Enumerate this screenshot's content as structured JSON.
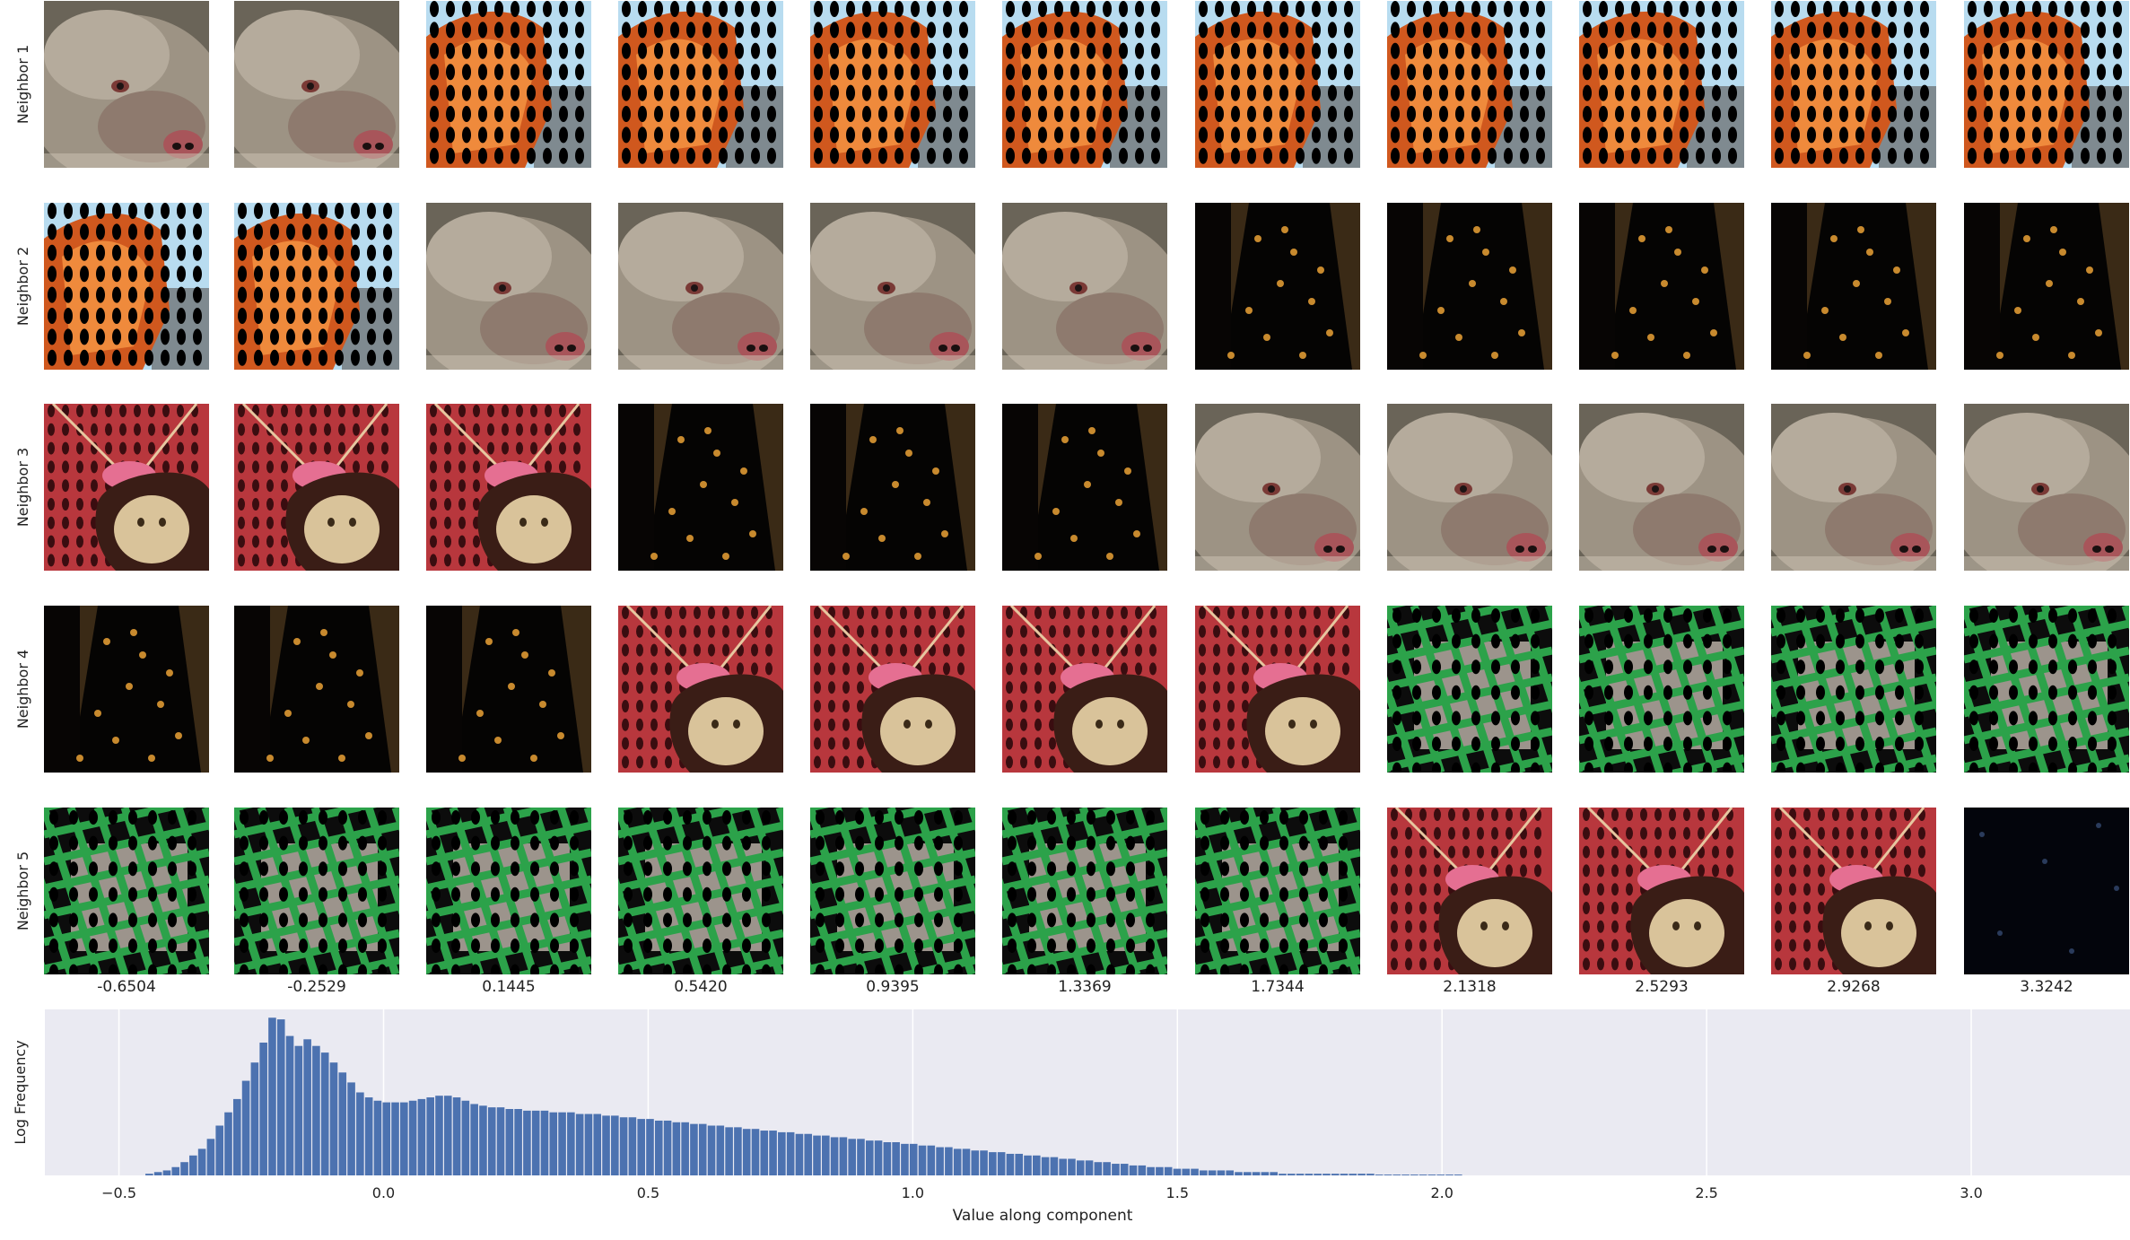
{
  "figure": {
    "row_labels": [
      "Neighbor 1",
      "Neighbor 2",
      "Neighbor 3",
      "Neighbor 4",
      "Neighbor 5"
    ],
    "column_values": [
      "-0.6504",
      "-0.2529",
      "0.1445",
      "0.5420",
      "0.9395",
      "1.3369",
      "1.7344",
      "2.1318",
      "2.5293",
      "2.9268",
      "3.3242"
    ],
    "image_grid": [
      [
        "mongoose",
        "mongoose",
        "orange-dots",
        "orange-dots",
        "orange-dots",
        "orange-dots",
        "orange-dots",
        "orange-dots",
        "orange-dots",
        "orange-dots",
        "orange-dots"
      ],
      [
        "orange-dots",
        "orange-dots",
        "mongoose",
        "mongoose",
        "mongoose",
        "mongoose",
        "dark-sparse",
        "dark-sparse",
        "dark-sparse",
        "dark-sparse",
        "dark-sparse"
      ],
      [
        "pendant",
        "pendant",
        "pendant",
        "dark-sparse",
        "dark-sparse",
        "dark-sparse",
        "mongoose",
        "mongoose",
        "mongoose",
        "mongoose",
        "mongoose"
      ],
      [
        "dark-sparse",
        "dark-sparse",
        "dark-sparse",
        "pendant",
        "pendant",
        "pendant",
        "pendant",
        "green-cage",
        "green-cage",
        "green-cage",
        "green-cage"
      ],
      [
        "green-cage",
        "green-cage",
        "green-cage",
        "green-cage",
        "green-cage",
        "green-cage",
        "green-cage",
        "pendant",
        "pendant",
        "pendant",
        "night-dark"
      ]
    ],
    "colors": {
      "hist_bar": "#4c72b0",
      "plot_bg": "#eaeaf2",
      "grid": "#ffffff"
    }
  },
  "chart_data": {
    "type": "bar",
    "title": "",
    "xlabel": "Value along component",
    "ylabel": "Log Frequency",
    "xlim": [
      -0.64,
      3.3
    ],
    "x_ticks": [
      -0.5,
      0.0,
      0.5,
      1.0,
      1.5,
      2.0,
      2.5,
      3.0
    ],
    "x_tick_labels": [
      "−0.5",
      "0.0",
      "0.5",
      "1.0",
      "1.5",
      "2.0",
      "2.5",
      "3.0"
    ],
    "ylim": [
      0,
      1
    ],
    "y_ticks_visible": false,
    "grid": true,
    "bin_start": -0.45,
    "bin_width": 0.0166,
    "values": [
      0.01,
      0.02,
      0.03,
      0.05,
      0.08,
      0.12,
      0.16,
      0.22,
      0.3,
      0.38,
      0.46,
      0.57,
      0.68,
      0.8,
      0.95,
      0.94,
      0.84,
      0.78,
      0.82,
      0.78,
      0.74,
      0.68,
      0.62,
      0.56,
      0.5,
      0.47,
      0.45,
      0.44,
      0.44,
      0.44,
      0.45,
      0.46,
      0.47,
      0.48,
      0.48,
      0.47,
      0.45,
      0.43,
      0.42,
      0.41,
      0.41,
      0.4,
      0.4,
      0.39,
      0.39,
      0.39,
      0.38,
      0.38,
      0.38,
      0.37,
      0.37,
      0.37,
      0.36,
      0.36,
      0.35,
      0.35,
      0.34,
      0.34,
      0.33,
      0.33,
      0.32,
      0.32,
      0.31,
      0.31,
      0.3,
      0.3,
      0.29,
      0.29,
      0.28,
      0.28,
      0.27,
      0.27,
      0.26,
      0.26,
      0.25,
      0.25,
      0.24,
      0.24,
      0.23,
      0.23,
      0.22,
      0.22,
      0.21,
      0.21,
      0.2,
      0.2,
      0.19,
      0.19,
      0.18,
      0.18,
      0.17,
      0.17,
      0.16,
      0.16,
      0.15,
      0.15,
      0.14,
      0.14,
      0.13,
      0.13,
      0.12,
      0.12,
      0.11,
      0.11,
      0.1,
      0.1,
      0.09,
      0.09,
      0.08,
      0.08,
      0.07,
      0.07,
      0.06,
      0.06,
      0.05,
      0.05,
      0.05,
      0.04,
      0.04,
      0.04,
      0.03,
      0.03,
      0.03,
      0.03,
      0.02,
      0.02,
      0.02,
      0.02,
      0.02,
      0.01,
      0.01,
      0.01,
      0.01,
      0.01,
      0.01,
      0.01,
      0.01,
      0.01,
      0.01,
      0.01,
      0.005,
      0.005,
      0.005,
      0.005,
      0.005,
      0.005,
      0.005,
      0.005,
      0.005,
      0.005
    ]
  }
}
